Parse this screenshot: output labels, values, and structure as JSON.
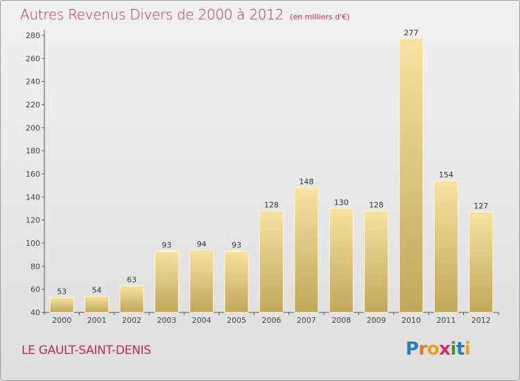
{
  "title": "Autres Revenus Divers de 2000 à 2012",
  "subtitle": "(en milliers d'€)",
  "commune": "LE GAULT-SAINT-DENIS",
  "logo": {
    "letters": [
      "P",
      "r",
      "o",
      "x",
      "i",
      "t",
      "i"
    ],
    "colors": [
      "#2a7ab8",
      "#e07b1a",
      "#e8a11c",
      "#d92a6a",
      "#3a9a3a",
      "#2a7ab8",
      "#e8a11c"
    ]
  },
  "colors": {
    "title": "#c0295d",
    "bar_light": "#f6e39f",
    "bar_dark": "#c2a65a",
    "axis": "#555555"
  },
  "chart_data": {
    "type": "bar",
    "categories": [
      "2000",
      "2001",
      "2002",
      "2003",
      "2004",
      "2005",
      "2006",
      "2007",
      "2008",
      "2009",
      "2010",
      "2011",
      "2012"
    ],
    "values": [
      53,
      54,
      63,
      93,
      94,
      93,
      128,
      148,
      130,
      128,
      277,
      154,
      127
    ],
    "ylim": [
      40,
      280
    ],
    "yticks": [
      40,
      60,
      80,
      100,
      120,
      140,
      160,
      180,
      200,
      220,
      240,
      260,
      280
    ],
    "grid": false,
    "legend": "none"
  }
}
